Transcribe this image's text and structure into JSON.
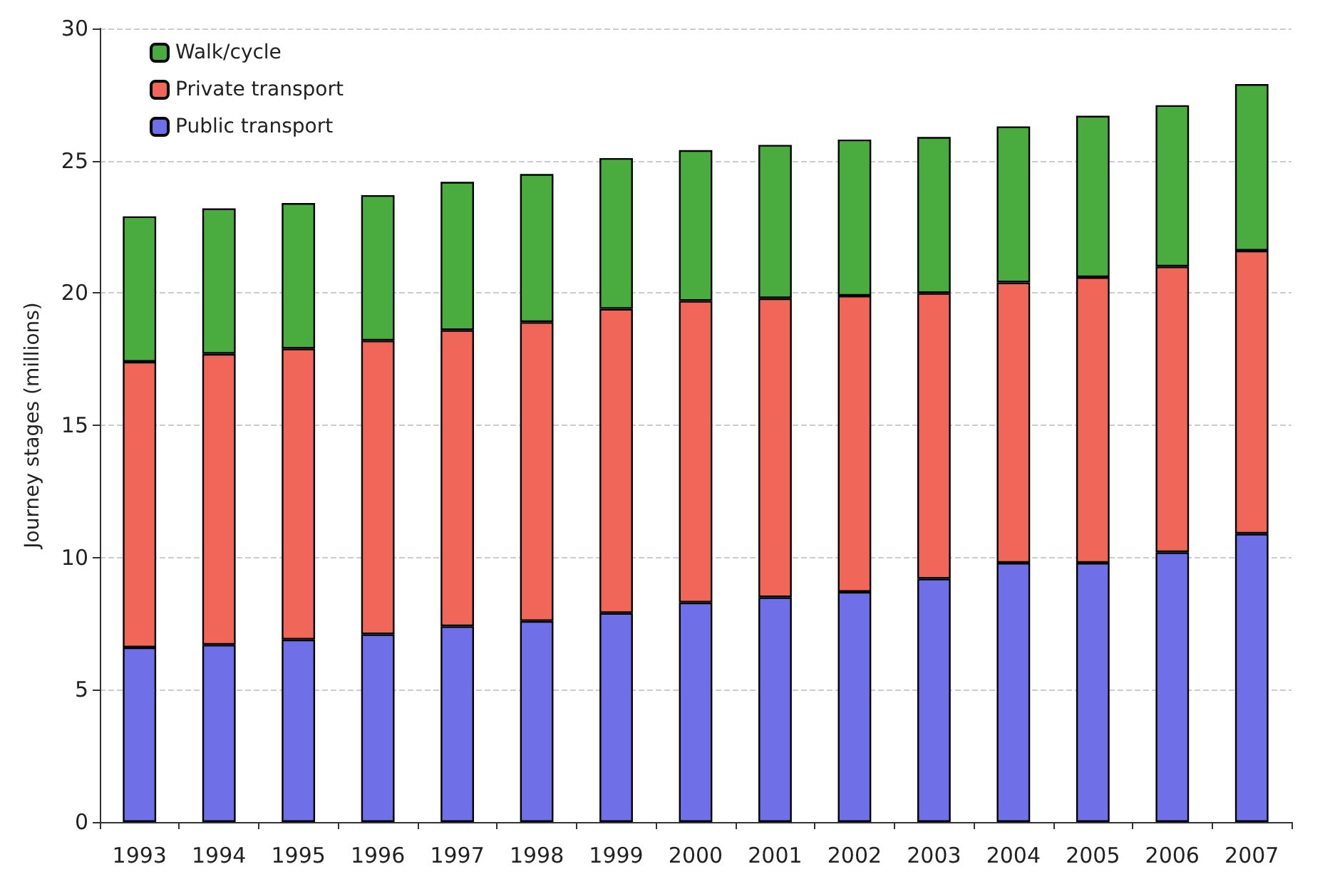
{
  "chart_data": {
    "type": "bar",
    "stacked": true,
    "ylabel": "Journey stages (millions)",
    "categories": [
      "1993",
      "1994",
      "1995",
      "1996",
      "1997",
      "1998",
      "1999",
      "2000",
      "2001",
      "2002",
      "2003",
      "2004",
      "2005",
      "2006",
      "2007"
    ],
    "series": [
      {
        "name": "Public transport",
        "color": "#6f6fe8",
        "values": [
          6.6,
          6.7,
          6.9,
          7.1,
          7.4,
          7.6,
          7.9,
          8.3,
          8.5,
          8.7,
          9.2,
          9.8,
          9.8,
          10.2,
          10.9
        ]
      },
      {
        "name": "Private transport",
        "color": "#f0675a",
        "values": [
          10.8,
          11.0,
          11.0,
          11.1,
          11.2,
          11.3,
          11.5,
          11.4,
          11.3,
          11.2,
          10.8,
          10.6,
          10.8,
          10.8,
          10.7
        ]
      },
      {
        "name": "Walk/cycle",
        "color": "#4aab3e",
        "values": [
          5.5,
          5.5,
          5.5,
          5.5,
          5.6,
          5.6,
          5.7,
          5.7,
          5.8,
          5.9,
          5.9,
          5.9,
          6.1,
          6.1,
          6.3
        ]
      }
    ],
    "ylim": [
      0,
      30
    ],
    "yticks": [
      0,
      5,
      10,
      15,
      20,
      25,
      30
    ],
    "grid": "y",
    "legend": "top left"
  }
}
